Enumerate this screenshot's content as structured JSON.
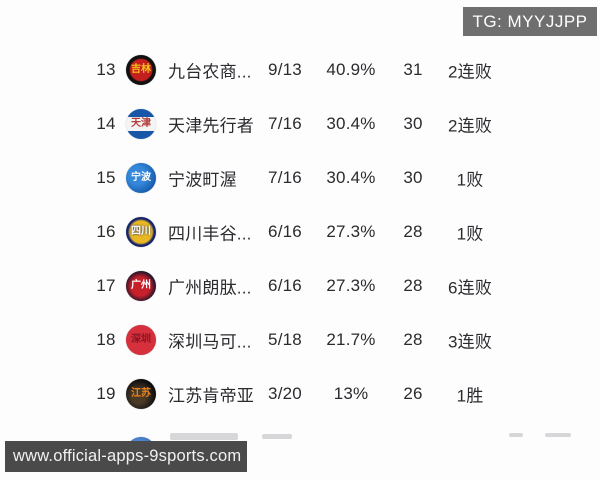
{
  "badge": {
    "text": "TG: MYYJJPP"
  },
  "watermark": {
    "text": "www.official-apps-9sports.com"
  },
  "colors": {
    "background": "#fdfdfd",
    "text": "#2b2b2f",
    "badge_bg": "#6f6f6f",
    "watermark_bg": "#4a4a4a"
  },
  "table": {
    "columns": [
      "rank",
      "logo",
      "name",
      "record",
      "win_pct",
      "points",
      "streak"
    ],
    "rows": [
      {
        "rank": "13",
        "logo": {
          "text": "吉林",
          "variant": "jilin"
        },
        "name": "九台农商...",
        "record": "9/13",
        "win_pct": "40.9%",
        "points": "31",
        "streak": "2连败"
      },
      {
        "rank": "14",
        "logo": {
          "text": "天津",
          "variant": "tianjin"
        },
        "name": "天津先行者",
        "record": "7/16",
        "win_pct": "30.4%",
        "points": "30",
        "streak": "2连败"
      },
      {
        "rank": "15",
        "logo": {
          "text": "宁波",
          "variant": "ningbo"
        },
        "name": "宁波町渥",
        "record": "7/16",
        "win_pct": "30.4%",
        "points": "30",
        "streak": "1败"
      },
      {
        "rank": "16",
        "logo": {
          "text": "四川",
          "variant": "sichuan"
        },
        "name": "四川丰谷...",
        "record": "6/16",
        "win_pct": "27.3%",
        "points": "28",
        "streak": "1败"
      },
      {
        "rank": "17",
        "logo": {
          "text": "广州",
          "variant": "guangzhou"
        },
        "name": "广州朗肽...",
        "record": "6/16",
        "win_pct": "27.3%",
        "points": "28",
        "streak": "6连败"
      },
      {
        "rank": "18",
        "logo": {
          "text": "深圳",
          "variant": "shenzhen"
        },
        "name": "深圳马可...",
        "record": "5/18",
        "win_pct": "21.7%",
        "points": "28",
        "streak": "3连败"
      },
      {
        "rank": "19",
        "logo": {
          "text": "江苏",
          "variant": "jiangsu"
        },
        "name": "江苏肯帝亚",
        "record": "3/20",
        "win_pct": "13%",
        "points": "26",
        "streak": "1胜"
      }
    ],
    "partial_row": {
      "logo": {
        "text": "",
        "variant": "blue"
      }
    }
  }
}
